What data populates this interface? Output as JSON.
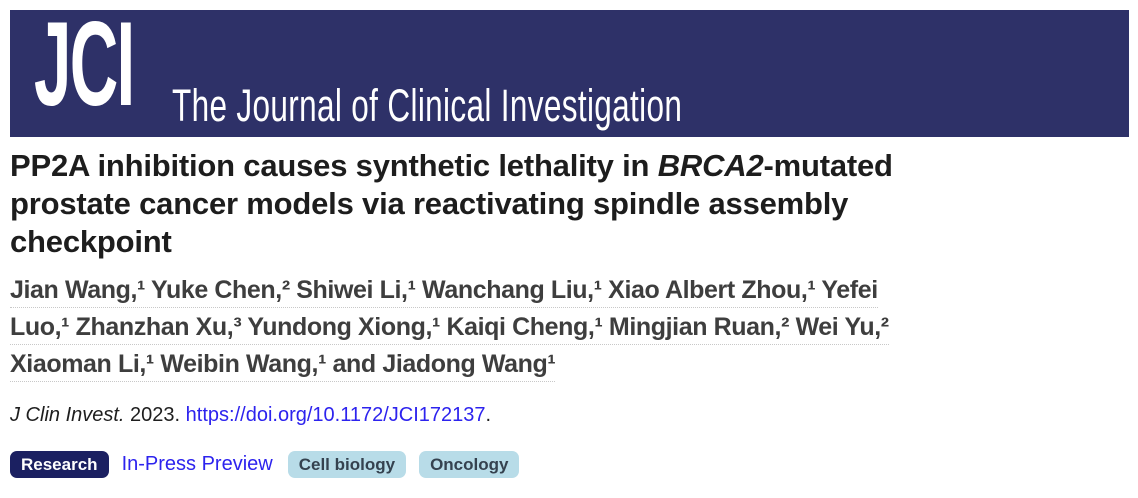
{
  "banner": {
    "logo": "JCI",
    "journal_name": "The Journal of Clinical Investigation",
    "background_color": "#2e3168"
  },
  "article": {
    "title": {
      "pre_gene": "PP2A inhibition causes synthetic lethality in ",
      "gene": "BRCA2",
      "post_gene": "-mutated",
      "line2": "prostate cancer models via reactivating spindle assembly",
      "line3": "checkpoint"
    },
    "authors_lines": [
      "Jian Wang,¹ Yuke Chen,² Shiwei Li,¹ Wanchang Liu,¹ Xiao Albert Zhou,¹ Yefei",
      "Luo,¹ Zhanzhan Xu,³ Yundong Xiong,¹ Kaiqi Cheng,¹ Mingjian Ruan,² Wei Yu,²",
      "Xiaoman Li,¹ Weibin Wang,¹ and Jiadong Wang¹"
    ],
    "citation": {
      "journal": "J Clin Invest.",
      "year": "2023.",
      "doi_link": "https://doi.org/10.1172/JCI172137",
      "suffix": "."
    }
  },
  "tags": {
    "research": "Research",
    "inpress": "In-Press Preview",
    "topics": [
      "Cell biology",
      "Oncology"
    ]
  },
  "colors": {
    "banner_navy": "#2e3168",
    "badge_navy": "#1b2061",
    "badge_light_blue": "#b8dce8",
    "link_blue": "#2d23ee",
    "title_text": "#1d1d1d",
    "author_text": "#3e3e3e"
  }
}
